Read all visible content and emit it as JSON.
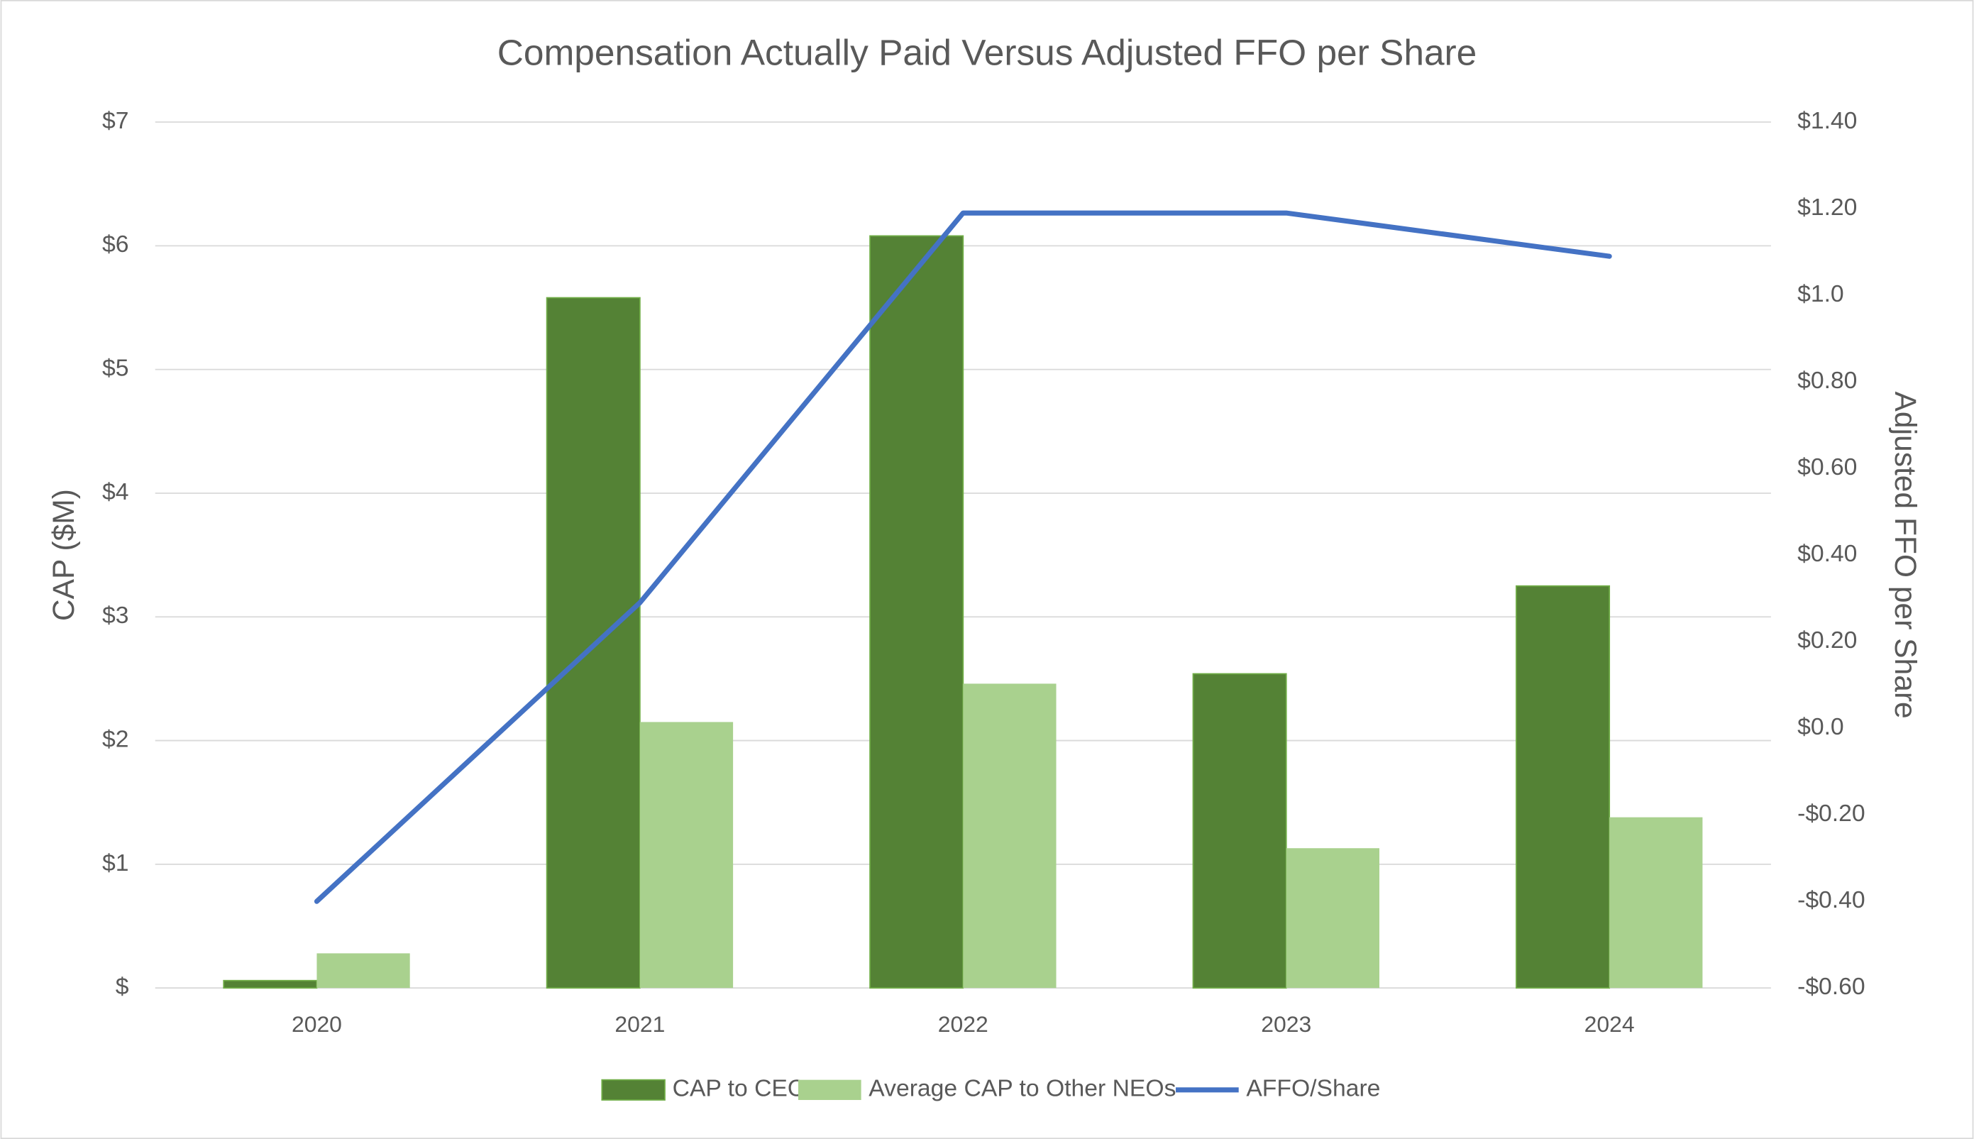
{
  "chart_data": {
    "type": "bar_line",
    "title": "Compensation Actually Paid Versus Adjusted FFO per Share",
    "y_label": "CAP ($M)",
    "y2_label": "Adjusted FFO per Share",
    "categories": [
      "2020",
      "2021",
      "2022",
      "2023",
      "2024"
    ],
    "series": [
      {
        "name": "CAP to CEO",
        "type": "bar",
        "color": "#548235",
        "values": [
          0.06,
          5.58,
          6.08,
          2.54,
          3.25
        ]
      },
      {
        "name": "Average CAP to Other NEOs",
        "type": "bar",
        "color": "#a9d18e",
        "values": [
          0.28,
          2.15,
          2.46,
          1.13,
          1.38
        ]
      },
      {
        "name": "AFFO/Share",
        "type": "line",
        "axis": "y2",
        "color": "#4472c4",
        "values": [
          -0.4,
          0.29,
          1.19,
          1.19,
          1.09
        ]
      }
    ],
    "ylim": [
      0,
      7
    ],
    "yticks": [
      {
        "value": 0,
        "label": "$"
      },
      {
        "value": 1,
        "label": "$1"
      },
      {
        "value": 2,
        "label": "$2"
      },
      {
        "value": 3,
        "label": "$3"
      },
      {
        "value": 4,
        "label": "$4"
      },
      {
        "value": 5,
        "label": "$5"
      },
      {
        "value": 6,
        "label": "$6"
      },
      {
        "value": 7,
        "label": "$7"
      }
    ],
    "y2lim": [
      -0.6,
      1.4
    ],
    "y2ticks": [
      {
        "value": -0.6,
        "label": "-$0.60"
      },
      {
        "value": -0.4,
        "label": "-$0.40"
      },
      {
        "value": -0.2,
        "label": "-$0.20"
      },
      {
        "value": 0,
        "label": "$0.0"
      },
      {
        "value": 0.2,
        "label": "$0.20"
      },
      {
        "value": 0.4,
        "label": "$0.40"
      },
      {
        "value": 0.6,
        "label": "$0.60"
      },
      {
        "value": 0.8,
        "label": "$0.80"
      },
      {
        "value": 1.0,
        "label": "$1.0"
      },
      {
        "value": 1.2,
        "label": "$1.20"
      },
      {
        "value": 1.4,
        "label": "$1.40"
      }
    ],
    "grid": true,
    "legend": "bottom"
  }
}
